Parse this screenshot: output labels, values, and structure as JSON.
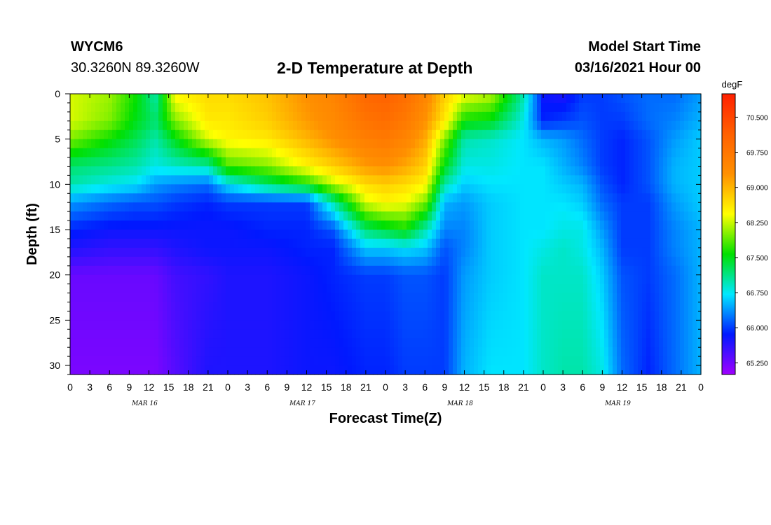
{
  "header": {
    "station_id": "WYCM6",
    "coords": "30.3260N 89.3260W",
    "title": "2-D Temperature at Depth",
    "model_start_label": "Model Start Time",
    "model_start_value": "03/16/2021 Hour 00"
  },
  "chart_data": {
    "type": "heatmap",
    "title": "2-D Temperature at Depth",
    "xlabel": "Forecast Time(Z)",
    "ylabel": "Depth (ft)",
    "units": "degF",
    "x_hours_range": [
      0,
      96
    ],
    "x_tick_labels": [
      "0",
      "3",
      "6",
      "9",
      "12",
      "15",
      "18",
      "21",
      "0",
      "3",
      "6",
      "9",
      "12",
      "15",
      "18",
      "21",
      "0",
      "3",
      "6",
      "9",
      "12",
      "15",
      "18",
      "21",
      "0",
      "3",
      "6",
      "9",
      "12",
      "15",
      "18",
      "21",
      "0"
    ],
    "date_labels": [
      "MAR 16",
      "MAR 17",
      "MAR 18",
      "MAR 19"
    ],
    "y_ticks": [
      0,
      5,
      10,
      15,
      20,
      25,
      30
    ],
    "y_tick_labels": [
      "0",
      "5",
      "10",
      "15",
      "20",
      "25",
      "30"
    ],
    "ylim": [
      0,
      31
    ],
    "colorbar_range": [
      65.0,
      71.0
    ],
    "colorbar_ticks": [
      "65.250",
      "66.000",
      "66.750",
      "67.500",
      "68.250",
      "69.000",
      "69.750",
      "70.500"
    ],
    "colorbar_colors": [
      "#a000ff",
      "#0018ff",
      "#00e8ff",
      "#00e000",
      "#ffff00",
      "#ff9000",
      "#ff6000",
      "#ff2000"
    ],
    "profiles": [
      {
        "hour": 0,
        "depths": [
          0,
          3,
          5,
          8,
          10,
          12,
          15,
          17,
          20,
          31
        ],
        "temps": [
          68.3,
          68.3,
          68.0,
          67.2,
          67.0,
          66.4,
          65.9,
          65.7,
          65.3,
          65.2
        ]
      },
      {
        "hour": 6,
        "depths": [
          0,
          3,
          5,
          8,
          10,
          12,
          15,
          17,
          20,
          31
        ],
        "temps": [
          68.1,
          68.0,
          67.6,
          67.1,
          66.8,
          66.2,
          65.8,
          65.6,
          65.3,
          65.2
        ]
      },
      {
        "hour": 10,
        "depths": [
          0,
          3,
          5,
          8,
          10,
          12,
          15,
          17,
          20,
          31
        ],
        "temps": [
          67.6,
          67.5,
          67.3,
          67.0,
          66.7,
          66.1,
          65.8,
          65.6,
          65.3,
          65.2
        ]
      },
      {
        "hour": 13,
        "depths": [
          0,
          3,
          5,
          8,
          10,
          12,
          15,
          17,
          20,
          31
        ],
        "temps": [
          67.0,
          67.2,
          67.0,
          66.8,
          66.4,
          66.1,
          65.8,
          65.6,
          65.3,
          65.2
        ]
      },
      {
        "hour": 16,
        "depths": [
          0,
          3,
          5,
          8,
          10,
          12,
          15,
          17,
          20,
          31
        ],
        "temps": [
          68.5,
          68.0,
          67.5,
          66.9,
          66.3,
          66.0,
          65.8,
          65.7,
          65.5,
          65.4
        ]
      },
      {
        "hour": 21,
        "depths": [
          0,
          3,
          5,
          8,
          10,
          12,
          15,
          17,
          20,
          31
        ],
        "temps": [
          68.7,
          68.6,
          68.3,
          67.0,
          66.2,
          65.9,
          65.8,
          65.8,
          65.6,
          65.7
        ]
      },
      {
        "hour": 24,
        "depths": [
          0,
          3,
          5,
          8,
          10,
          12,
          15,
          17,
          20,
          31
        ],
        "temps": [
          68.7,
          68.6,
          68.5,
          67.8,
          66.7,
          66.0,
          65.8,
          65.8,
          65.7,
          65.7
        ]
      },
      {
        "hour": 30,
        "depths": [
          0,
          3,
          5,
          8,
          10,
          12,
          15,
          17,
          20,
          31
        ],
        "temps": [
          68.9,
          68.8,
          68.6,
          68.0,
          67.2,
          66.0,
          65.9,
          65.8,
          65.7,
          65.7
        ]
      },
      {
        "hour": 36,
        "depths": [
          0,
          3,
          5,
          8,
          10,
          12,
          15,
          17,
          20,
          31
        ],
        "temps": [
          69.3,
          69.2,
          69.0,
          68.5,
          67.6,
          66.0,
          65.9,
          65.9,
          65.8,
          65.8
        ]
      },
      {
        "hour": 40,
        "depths": [
          0,
          3,
          5,
          8,
          10,
          12,
          15,
          17,
          20,
          31
        ],
        "temps": [
          69.5,
          69.4,
          69.3,
          68.8,
          68.2,
          67.0,
          66.1,
          65.9,
          65.9,
          65.8
        ]
      },
      {
        "hour": 45,
        "depths": [
          0,
          3,
          5,
          8,
          10,
          12,
          15,
          17,
          20,
          31
        ],
        "temps": [
          70.0,
          69.8,
          69.6,
          69.2,
          68.7,
          68.3,
          67.2,
          66.6,
          66.0,
          65.9
        ]
      },
      {
        "hour": 48,
        "depths": [
          0,
          3,
          5,
          8,
          10,
          12,
          15,
          17,
          20,
          31
        ],
        "temps": [
          70.1,
          69.9,
          69.7,
          69.3,
          68.8,
          68.5,
          67.4,
          66.6,
          66.0,
          65.9
        ]
      },
      {
        "hour": 51,
        "depths": [
          0,
          3,
          5,
          8,
          10,
          12,
          15,
          17,
          20,
          31
        ],
        "temps": [
          69.9,
          69.7,
          69.5,
          69.1,
          68.7,
          68.4,
          67.6,
          66.7,
          66.1,
          66.0
        ]
      },
      {
        "hour": 54,
        "depths": [
          0,
          3,
          5,
          8,
          10,
          12,
          15,
          17,
          20,
          31
        ],
        "temps": [
          69.5,
          69.3,
          69.1,
          68.8,
          68.5,
          68.0,
          67.0,
          66.6,
          66.1,
          66.0
        ]
      },
      {
        "hour": 57,
        "depths": [
          0,
          3,
          5,
          8,
          10,
          12,
          15,
          17,
          20,
          31
        ],
        "temps": [
          68.8,
          68.6,
          68.0,
          67.5,
          67.0,
          66.5,
          66.3,
          66.1,
          66.0,
          66.0
        ]
      },
      {
        "hour": 60,
        "depths": [
          0,
          3,
          5,
          8,
          10,
          12,
          15,
          17,
          20,
          31
        ],
        "temps": [
          68.4,
          67.6,
          67.0,
          66.8,
          66.6,
          66.4,
          66.3,
          66.3,
          66.4,
          66.5
        ]
      },
      {
        "hour": 64,
        "depths": [
          0,
          3,
          5,
          8,
          10,
          12,
          15,
          17,
          20,
          31
        ],
        "temps": [
          68.2,
          67.5,
          66.9,
          66.8,
          66.7,
          66.6,
          66.6,
          66.6,
          66.6,
          66.7
        ]
      },
      {
        "hour": 69,
        "depths": [
          0,
          3,
          5,
          8,
          10,
          12,
          15,
          17,
          20,
          31
        ],
        "temps": [
          67.0,
          66.8,
          66.7,
          66.7,
          66.7,
          66.7,
          66.7,
          66.7,
          66.7,
          66.7
        ]
      },
      {
        "hour": 72,
        "depths": [
          0,
          3,
          5,
          8,
          10,
          12,
          15,
          17,
          20,
          31
        ],
        "temps": [
          65.8,
          65.9,
          66.5,
          66.7,
          66.7,
          66.7,
          66.7,
          66.8,
          66.9,
          66.9
        ]
      },
      {
        "hour": 75,
        "depths": [
          0,
          3,
          5,
          8,
          10,
          12,
          15,
          17,
          20,
          31
        ],
        "temps": [
          65.7,
          66.0,
          66.4,
          66.5,
          66.6,
          66.7,
          66.8,
          66.9,
          66.9,
          67.0
        ]
      },
      {
        "hour": 78,
        "depths": [
          0,
          3,
          5,
          8,
          10,
          12,
          15,
          17,
          20,
          31
        ],
        "temps": [
          66.0,
          66.1,
          66.2,
          66.3,
          66.5,
          66.6,
          66.8,
          66.8,
          66.9,
          67.0
        ]
      },
      {
        "hour": 81,
        "depths": [
          0,
          3,
          5,
          8,
          10,
          12,
          15,
          17,
          20,
          31
        ],
        "temps": [
          66.0,
          66.0,
          66.0,
          66.0,
          66.1,
          66.2,
          66.4,
          66.5,
          66.6,
          66.8
        ]
      },
      {
        "hour": 84,
        "depths": [
          0,
          3,
          5,
          8,
          10,
          12,
          15,
          17,
          20,
          31
        ],
        "temps": [
          66.1,
          66.0,
          65.9,
          65.9,
          65.9,
          66.0,
          66.0,
          66.0,
          66.1,
          66.2
        ]
      },
      {
        "hour": 88,
        "depths": [
          0,
          3,
          5,
          8,
          10,
          12,
          15,
          17,
          20,
          31
        ],
        "temps": [
          66.2,
          66.2,
          66.1,
          66.1,
          66.1,
          66.0,
          66.0,
          66.0,
          66.0,
          65.9
        ]
      },
      {
        "hour": 92,
        "depths": [
          0,
          3,
          5,
          8,
          10,
          12,
          15,
          17,
          20,
          31
        ],
        "temps": [
          66.2,
          66.3,
          66.4,
          66.5,
          66.5,
          66.4,
          66.3,
          66.3,
          66.2,
          66.2
        ]
      },
      {
        "hour": 96,
        "depths": [
          0,
          3,
          5,
          8,
          10,
          12,
          15,
          17,
          20,
          31
        ],
        "temps": [
          66.4,
          66.5,
          66.6,
          66.6,
          66.6,
          66.6,
          66.5,
          66.5,
          66.5,
          66.5
        ]
      }
    ]
  }
}
